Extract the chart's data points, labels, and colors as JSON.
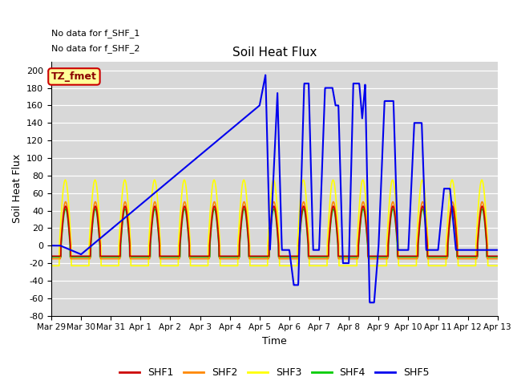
{
  "title": "Soil Heat Flux",
  "xlabel": "Time",
  "ylabel": "Soil Heat Flux",
  "ylim": [
    -80,
    210
  ],
  "yticks": [
    -80,
    -60,
    -40,
    -20,
    0,
    20,
    40,
    60,
    80,
    100,
    120,
    140,
    160,
    180,
    200
  ],
  "xtick_labels": [
    "Mar 29",
    "Mar 30",
    "Mar 31",
    "Apr 1",
    "Apr 2",
    "Apr 3",
    "Apr 4",
    "Apr 5",
    "Apr 6",
    "Apr 7",
    "Apr 8",
    "Apr 9",
    "Apr 10",
    "Apr 11",
    "Apr 12",
    "Apr 13"
  ],
  "xtick_positions": [
    0,
    1,
    2,
    3,
    4,
    5,
    6,
    7,
    8,
    9,
    10,
    11,
    12,
    13,
    14,
    15
  ],
  "text_no_data": [
    "No data for f_SHF_1",
    "No data for f_SHF_2"
  ],
  "legend_label_box": "TZ_fmet",
  "colors": {
    "SHF1": "#cc0000",
    "SHF2": "#ff8800",
    "SHF3": "#ffff00",
    "SHF4": "#00cc00",
    "SHF5": "#0000ee"
  },
  "bg_color": "#d8d8d8",
  "legend_box_color": "#ffff99",
  "legend_box_edge": "#cc0000"
}
